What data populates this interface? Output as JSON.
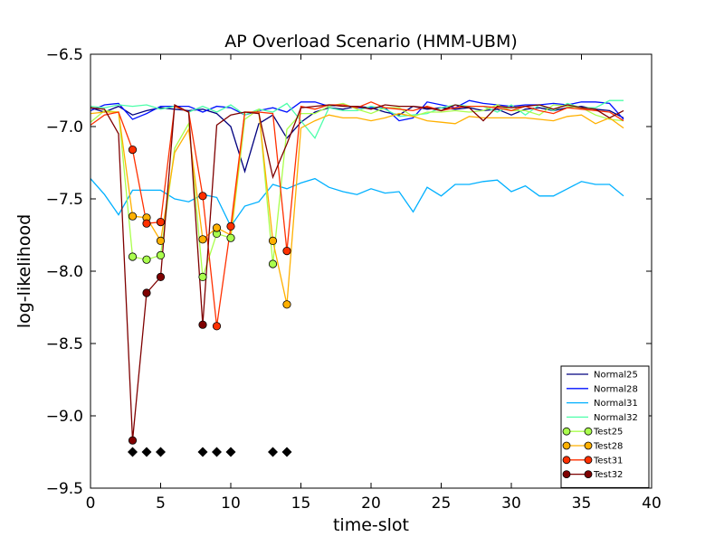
{
  "chart_data": {
    "type": "line",
    "title": "AP Overload Scenario (HMM-UBM)",
    "xlabel": "time-slot",
    "ylabel": "log-likelihood",
    "xlim": [
      0,
      40
    ],
    "ylim": [
      -9.5,
      -6.5
    ],
    "xticks": [
      0,
      5,
      10,
      15,
      20,
      25,
      30,
      35,
      40
    ],
    "yticks": [
      -6.5,
      -7.0,
      -7.5,
      -8.0,
      -8.5,
      -9.0,
      -9.5
    ],
    "xtick_labels": [
      "0",
      "5",
      "10",
      "15",
      "20",
      "25",
      "30",
      "35",
      "40"
    ],
    "ytick_labels": [
      "−6.5",
      "−7.0",
      "−7.5",
      "−8.0",
      "−8.5",
      "−9.0",
      "−9.5"
    ],
    "grid": false,
    "legend_position": "lower right",
    "x": [
      0,
      1,
      2,
      3,
      4,
      5,
      6,
      7,
      8,
      9,
      10,
      11,
      12,
      13,
      14,
      15,
      16,
      17,
      18,
      19,
      20,
      21,
      22,
      23,
      24,
      25,
      26,
      27,
      28,
      29,
      30,
      31,
      32,
      33,
      34,
      35,
      36,
      37,
      38
    ],
    "series": [
      {
        "name": "Normal25",
        "color": "#00007f",
        "marker": "none",
        "values": [
          -6.87,
          -6.9,
          -6.86,
          -6.92,
          -6.89,
          -6.87,
          -6.88,
          -6.89,
          -6.88,
          -6.91,
          -7.0,
          -7.31,
          -6.98,
          -6.92,
          -7.08,
          -6.97,
          -6.9,
          -6.87,
          -6.88,
          -6.86,
          -6.87,
          -6.9,
          -6.92,
          -6.86,
          -6.88,
          -6.87,
          -6.88,
          -6.87,
          -6.89,
          -6.88,
          -6.92,
          -6.88,
          -6.87,
          -6.89,
          -6.87,
          -6.86,
          -6.88,
          -6.89,
          -6.94
        ]
      },
      {
        "name": "Normal28",
        "color": "#0010ff",
        "marker": "none",
        "values": [
          -6.89,
          -6.85,
          -6.84,
          -6.95,
          -6.91,
          -6.86,
          -6.86,
          -6.86,
          -6.9,
          -6.86,
          -6.87,
          -6.92,
          -6.89,
          -6.87,
          -6.9,
          -6.83,
          -6.83,
          -6.86,
          -6.85,
          -6.87,
          -6.87,
          -6.87,
          -6.96,
          -6.94,
          -6.83,
          -6.85,
          -6.87,
          -6.82,
          -6.84,
          -6.85,
          -6.86,
          -6.85,
          -6.85,
          -6.84,
          -6.85,
          -6.83,
          -6.83,
          -6.84,
          -6.95
        ]
      },
      {
        "name": "Normal31",
        "color": "#00b0ff",
        "marker": "none",
        "values": [
          -7.36,
          -7.47,
          -7.61,
          -7.44,
          -7.44,
          -7.44,
          -7.5,
          -7.52,
          -7.47,
          -7.49,
          -7.69,
          -7.55,
          -7.52,
          -7.4,
          -7.43,
          -7.39,
          -7.36,
          -7.42,
          -7.45,
          -7.47,
          -7.43,
          -7.46,
          -7.45,
          -7.59,
          -7.42,
          -7.48,
          -7.4,
          -7.4,
          -7.38,
          -7.37,
          -7.45,
          -7.41,
          -7.48,
          -7.48,
          -7.43,
          -7.38,
          -7.4,
          -7.4,
          -7.48
        ]
      },
      {
        "name": "Normal32",
        "color": "#4dffaa",
        "marker": "none",
        "values": [
          -6.86,
          -6.87,
          -6.85,
          -6.86,
          -6.85,
          -6.88,
          -6.86,
          -6.9,
          -6.86,
          -6.9,
          -6.85,
          -6.92,
          -6.88,
          -6.9,
          -6.84,
          -6.96,
          -7.08,
          -6.87,
          -6.89,
          -6.89,
          -6.86,
          -6.88,
          -6.93,
          -6.92,
          -6.91,
          -6.87,
          -6.85,
          -6.86,
          -6.86,
          -6.9,
          -6.85,
          -6.92,
          -6.85,
          -6.89,
          -6.84,
          -6.87,
          -6.87,
          -6.82,
          -6.82
        ]
      }
    ],
    "test_series": [
      {
        "name": "Test25",
        "color": "#aaff4d",
        "marker": "circle",
        "values": [
          -6.97,
          -6.89,
          -6.9,
          -7.9,
          -7.92,
          -7.89,
          -7.15,
          -6.98,
          -8.04,
          -7.74,
          -7.77,
          -6.95,
          -6.88,
          -7.95,
          -7.02,
          -6.91,
          -6.91,
          -6.86,
          -6.84,
          -6.88,
          -6.91,
          -6.87,
          -6.87,
          -6.93,
          -6.9,
          -6.9,
          -6.89,
          -6.9,
          -6.89,
          -6.85,
          -6.89,
          -6.89,
          -6.92,
          -6.85,
          -6.86,
          -6.87,
          -6.92,
          -6.95,
          -6.96
        ],
        "marker_x": [
          3,
          4,
          5,
          8,
          9,
          10,
          13
        ]
      },
      {
        "name": "Test28",
        "color": "#ffb000",
        "marker": "circle",
        "values": [
          -6.91,
          -6.9,
          -6.9,
          -7.62,
          -7.63,
          -7.79,
          -7.18,
          -7.02,
          -7.78,
          -7.7,
          -7.75,
          -6.9,
          -6.9,
          -7.79,
          -8.23,
          -7.01,
          -6.96,
          -6.92,
          -6.94,
          -6.94,
          -6.96,
          -6.94,
          -6.91,
          -6.93,
          -6.96,
          -6.97,
          -6.98,
          -6.93,
          -6.94,
          -6.94,
          -6.94,
          -6.94,
          -6.95,
          -6.96,
          -6.93,
          -6.92,
          -6.98,
          -6.94,
          -7.01
        ],
        "marker_x": [
          3,
          4,
          5,
          8,
          9,
          13,
          14
        ]
      },
      {
        "name": "Test31",
        "color": "#ff3000",
        "marker": "circle",
        "values": [
          -6.99,
          -6.92,
          -6.9,
          -7.16,
          -7.67,
          -7.66,
          -6.86,
          -6.9,
          -7.48,
          -8.38,
          -7.69,
          -6.9,
          -6.9,
          -6.91,
          -7.86,
          -6.86,
          -6.88,
          -6.85,
          -6.85,
          -6.87,
          -6.83,
          -6.87,
          -6.88,
          -6.89,
          -6.86,
          -6.89,
          -6.87,
          -6.86,
          -6.86,
          -6.87,
          -6.89,
          -6.86,
          -6.89,
          -6.91,
          -6.87,
          -6.88,
          -6.89,
          -6.9,
          -6.96
        ],
        "marker_x": [
          3,
          4,
          5,
          8,
          9,
          10,
          14
        ]
      },
      {
        "name": "Test32",
        "color": "#7f0000",
        "marker": "circle",
        "values": [
          -6.87,
          -6.88,
          -7.05,
          -9.17,
          -8.15,
          -8.04,
          -6.85,
          -6.9,
          -8.37,
          -6.99,
          -6.92,
          -6.9,
          -6.91,
          -7.35,
          -7.12,
          -6.87,
          -6.86,
          -6.85,
          -6.86,
          -6.86,
          -6.88,
          -6.85,
          -6.86,
          -6.86,
          -6.87,
          -6.89,
          -6.85,
          -6.87,
          -6.96,
          -6.86,
          -6.87,
          -6.86,
          -6.85,
          -6.88,
          -6.85,
          -6.87,
          -6.88,
          -6.94,
          -6.89
        ],
        "marker_x": [
          3,
          4,
          5,
          8
        ]
      }
    ],
    "anomaly_markers": {
      "marker": "diamond",
      "color": "#000000",
      "y": -9.25,
      "x": [
        3,
        4,
        5,
        8,
        9,
        10,
        13,
        14
      ]
    }
  }
}
